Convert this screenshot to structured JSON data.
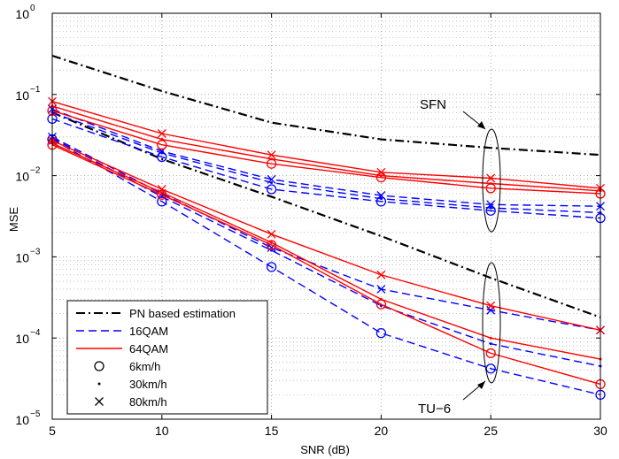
{
  "chart_data": {
    "type": "line",
    "xlabel": "SNR (dB)",
    "ylabel": "MSE",
    "xlim": [
      5,
      30
    ],
    "ylim_log10": [
      -5,
      0
    ],
    "yscale": "log",
    "grid": true,
    "x_ticks": [
      "5",
      "10",
      "15",
      "20",
      "25",
      "30"
    ],
    "y_ticks": [
      {
        "base": "10",
        "exp": "0"
      },
      {
        "base": "10",
        "exp": "−1"
      },
      {
        "base": "10",
        "exp": "−2"
      },
      {
        "base": "10",
        "exp": "−3"
      },
      {
        "base": "10",
        "exp": "−4"
      },
      {
        "base": "10",
        "exp": "−5"
      }
    ],
    "x": [
      5,
      10,
      15,
      20,
      25,
      30
    ],
    "legend": {
      "position": "bottom-left",
      "entries": [
        {
          "label": "PN based estimation",
          "style": "dashdot",
          "color": "#000000"
        },
        {
          "label": "16QAM",
          "style": "dashed",
          "color": "#0000ff"
        },
        {
          "label": "64QAM",
          "style": "solid",
          "color": "#ff0000"
        },
        {
          "label": "6km/h",
          "marker": "circle"
        },
        {
          "label": "30km/h",
          "marker": "dot"
        },
        {
          "label": "80km/h",
          "marker": "x"
        }
      ]
    },
    "annotations": {
      "sfn": "SFN",
      "tu6": "TU−6"
    },
    "series": [
      {
        "group": "PN",
        "channel": "SFN",
        "style": "dashdot",
        "color": "#000000",
        "marker": "none",
        "values": [
          0.3,
          0.11,
          0.045,
          0.028,
          0.022,
          0.018
        ]
      },
      {
        "group": "PN",
        "channel": "TU-6",
        "style": "dashdot",
        "color": "#000000",
        "marker": "none",
        "values": [
          0.06,
          0.016,
          0.0055,
          0.0018,
          0.00055,
          0.00018
        ]
      },
      {
        "group": "16QAM",
        "channel": "SFN",
        "style": "dashed",
        "color": "#0000ff",
        "marker": "circle",
        "values": [
          0.05,
          0.017,
          0.0068,
          0.0048,
          0.0037,
          0.003
        ]
      },
      {
        "group": "16QAM",
        "channel": "SFN",
        "style": "dashed",
        "color": "#0000ff",
        "marker": "dot",
        "values": [
          0.06,
          0.019,
          0.0082,
          0.0052,
          0.004,
          0.0035
        ]
      },
      {
        "group": "16QAM",
        "channel": "SFN",
        "style": "dashed",
        "color": "#0000ff",
        "marker": "x",
        "values": [
          0.066,
          0.02,
          0.009,
          0.0057,
          0.0044,
          0.0042
        ]
      },
      {
        "group": "16QAM",
        "channel": "TU-6",
        "style": "dashed",
        "color": "#0000ff",
        "marker": "circle",
        "values": [
          0.028,
          0.0048,
          0.00075,
          0.000115,
          4.2e-05,
          2e-05
        ]
      },
      {
        "group": "16QAM",
        "channel": "TU-6",
        "style": "dashed",
        "color": "#0000ff",
        "marker": "dot",
        "values": [
          0.029,
          0.0055,
          0.0012,
          0.00025,
          8.5e-05,
          4.5e-05
        ]
      },
      {
        "group": "16QAM",
        "channel": "TU-6",
        "style": "dashed",
        "color": "#0000ff",
        "marker": "x",
        "values": [
          0.03,
          0.006,
          0.0013,
          0.0004,
          0.00022,
          0.000125
        ]
      },
      {
        "group": "64QAM",
        "channel": "SFN",
        "style": "solid",
        "color": "#ff0000",
        "marker": "circle",
        "values": [
          0.063,
          0.024,
          0.014,
          0.0095,
          0.007,
          0.006
        ]
      },
      {
        "group": "64QAM",
        "channel": "SFN",
        "style": "solid",
        "color": "#ff0000",
        "marker": "dot",
        "values": [
          0.072,
          0.028,
          0.016,
          0.01,
          0.008,
          0.0065
        ]
      },
      {
        "group": "64QAM",
        "channel": "SFN",
        "style": "solid",
        "color": "#ff0000",
        "marker": "x",
        "values": [
          0.082,
          0.033,
          0.018,
          0.011,
          0.0093,
          0.007
        ]
      },
      {
        "group": "64QAM",
        "channel": "TU-6",
        "style": "solid",
        "color": "#ff0000",
        "marker": "circle",
        "values": [
          0.024,
          0.0058,
          0.0014,
          0.00026,
          6.5e-05,
          2.7e-05
        ]
      },
      {
        "group": "64QAM",
        "channel": "TU-6",
        "style": "solid",
        "color": "#ff0000",
        "marker": "dot",
        "values": [
          0.025,
          0.0062,
          0.0015,
          0.0003,
          0.0001,
          5.5e-05
        ]
      },
      {
        "group": "64QAM",
        "channel": "TU-6",
        "style": "solid",
        "color": "#ff0000",
        "marker": "x",
        "values": [
          0.027,
          0.0068,
          0.0019,
          0.0006,
          0.00025,
          0.000125
        ]
      }
    ]
  }
}
